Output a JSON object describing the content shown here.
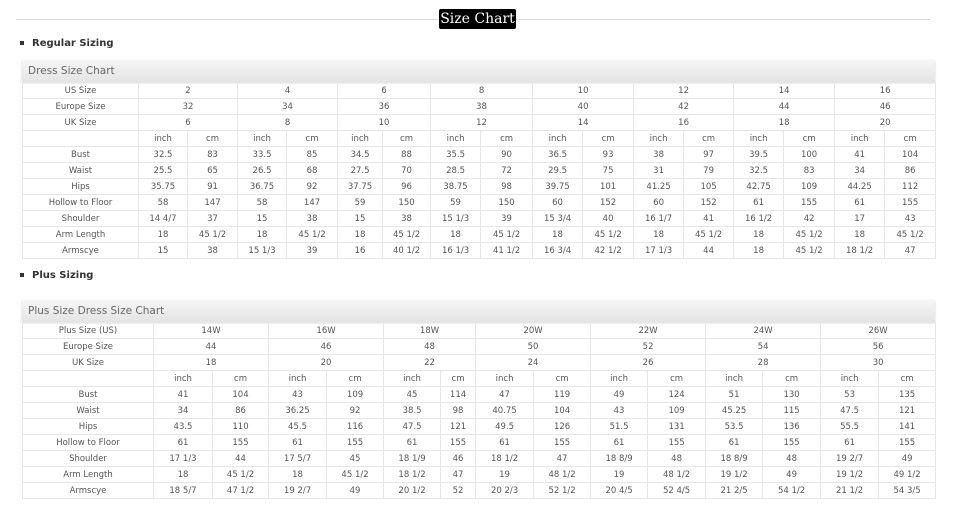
{
  "page_title": "Size Chart",
  "sections": [
    {
      "heading": "Regular Sizing",
      "chart_title": "Dress Size Chart",
      "size_rows": [
        {
          "label": "US Size",
          "values": [
            "2",
            "4",
            "6",
            "8",
            "10",
            "12",
            "14",
            "16"
          ]
        },
        {
          "label": "Europe Size",
          "values": [
            "32",
            "34",
            "36",
            "38",
            "40",
            "42",
            "44",
            "46"
          ]
        },
        {
          "label": "UK Size",
          "values": [
            "6",
            "8",
            "10",
            "12",
            "14",
            "16",
            "18",
            "20"
          ]
        }
      ],
      "unit_labels": [
        "inch",
        "cm"
      ],
      "measure_rows": [
        {
          "label": "Bust",
          "values": [
            "32.5",
            "83",
            "33.5",
            "85",
            "34.5",
            "88",
            "35.5",
            "90",
            "36.5",
            "93",
            "38",
            "97",
            "39.5",
            "100",
            "41",
            "104"
          ]
        },
        {
          "label": "Waist",
          "values": [
            "25.5",
            "65",
            "26.5",
            "68",
            "27.5",
            "70",
            "28.5",
            "72",
            "29.5",
            "75",
            "31",
            "79",
            "32.5",
            "83",
            "34",
            "86"
          ]
        },
        {
          "label": "Hips",
          "values": [
            "35.75",
            "91",
            "36.75",
            "92",
            "37.75",
            "96",
            "38.75",
            "98",
            "39.75",
            "101",
            "41.25",
            "105",
            "42.75",
            "109",
            "44.25",
            "112"
          ]
        },
        {
          "label": "Hollow to Floor",
          "values": [
            "58",
            "147",
            "58",
            "147",
            "59",
            "150",
            "59",
            "150",
            "60",
            "152",
            "60",
            "152",
            "61",
            "155",
            "61",
            "155"
          ]
        },
        {
          "label": "Shoulder",
          "values": [
            "14 4/7",
            "37",
            "15",
            "38",
            "15",
            "38",
            "15 1/3",
            "39",
            "15 3/4",
            "40",
            "16 1/7",
            "41",
            "16 1/2",
            "42",
            "17",
            "43"
          ]
        },
        {
          "label": "Arm Length",
          "values": [
            "18",
            "45 1/2",
            "18",
            "45 1/2",
            "18",
            "45 1/2",
            "18",
            "45 1/2",
            "18",
            "45 1/2",
            "18",
            "45 1/2",
            "18",
            "45 1/2",
            "18",
            "45 1/2"
          ]
        },
        {
          "label": "Armscye",
          "values": [
            "15",
            "38",
            "15 1/3",
            "39",
            "16",
            "40 1/2",
            "16 1/3",
            "41 1/2",
            "16 3/4",
            "42 1/2",
            "17 1/3",
            "44",
            "18",
            "45 1/2",
            "18 1/2",
            "47"
          ]
        }
      ]
    },
    {
      "heading": "Plus Sizing",
      "chart_title": "Plus Size Dress Size Chart",
      "size_rows": [
        {
          "label": "Plus Size (US)",
          "values": [
            "14W",
            "16W",
            "18W",
            "20W",
            "22W",
            "24W",
            "26W"
          ]
        },
        {
          "label": "Europe Size",
          "values": [
            "44",
            "46",
            "48",
            "50",
            "52",
            "54",
            "56"
          ]
        },
        {
          "label": "UK Size",
          "values": [
            "18",
            "20",
            "22",
            "24",
            "26",
            "28",
            "30"
          ]
        }
      ],
      "unit_labels": [
        "inch",
        "cm"
      ],
      "measure_rows": [
        {
          "label": "Bust",
          "values": [
            "41",
            "104",
            "43",
            "109",
            "45",
            "114",
            "47",
            "119",
            "49",
            "124",
            "51",
            "130",
            "53",
            "135"
          ]
        },
        {
          "label": "Waist",
          "values": [
            "34",
            "86",
            "36.25",
            "92",
            "38.5",
            "98",
            "40.75",
            "104",
            "43",
            "109",
            "45.25",
            "115",
            "47.5",
            "121"
          ]
        },
        {
          "label": "Hips",
          "values": [
            "43.5",
            "110",
            "45.5",
            "116",
            "47.5",
            "121",
            "49.5",
            "126",
            "51.5",
            "131",
            "53.5",
            "136",
            "55.5",
            "141"
          ]
        },
        {
          "label": "Hollow to Floor",
          "values": [
            "61",
            "155",
            "61",
            "155",
            "61",
            "155",
            "61",
            "155",
            "61",
            "155",
            "61",
            "155",
            "61",
            "155"
          ]
        },
        {
          "label": "Shoulder",
          "values": [
            "17 1/3",
            "44",
            "17 5/7",
            "45",
            "18 1/9",
            "46",
            "18 1/2",
            "47",
            "18 8/9",
            "48",
            "18 8/9",
            "48",
            "19 2/7",
            "49"
          ]
        },
        {
          "label": "Arm Length",
          "values": [
            "18",
            "45 1/2",
            "18",
            "45 1/2",
            "18 1/2",
            "47",
            "19",
            "48 1/2",
            "19",
            "48 1/2",
            "19 1/2",
            "49",
            "19 1/2",
            "49 1/2"
          ]
        },
        {
          "label": "Armscye",
          "values": [
            "18 5/7",
            "47 1/2",
            "19 2/7",
            "49",
            "20 1/2",
            "52",
            "20 2/3",
            "52 1/2",
            "20 4/5",
            "52 4/5",
            "21 2/5",
            "54 1/2",
            "21 1/2",
            "54 3/5"
          ]
        }
      ]
    }
  ]
}
